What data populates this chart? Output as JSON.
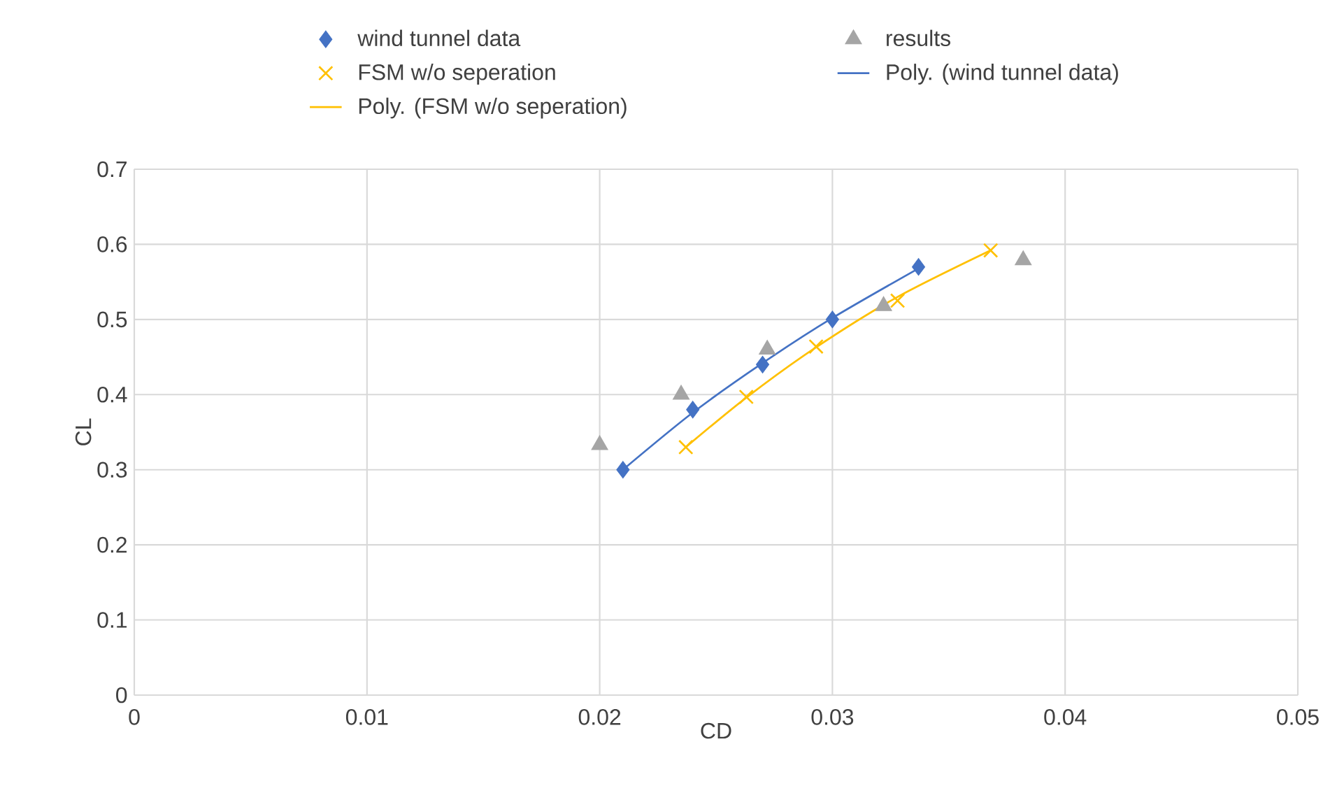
{
  "chart_data": {
    "type": "scatter",
    "xlabel": "CD",
    "ylabel": "CL",
    "xlim": [
      0,
      0.05
    ],
    "ylim": [
      0,
      0.7
    ],
    "xticks": [
      0,
      0.01,
      0.02,
      0.03,
      0.04,
      0.05
    ],
    "yticks": [
      0,
      0.1,
      0.2,
      0.3,
      0.4,
      0.5,
      0.6,
      0.7
    ],
    "grid": true,
    "legend": "top",
    "series": [
      {
        "name": "wind tunnel data",
        "marker": "diamond",
        "color": "#4472c4",
        "x": [
          0.021,
          0.024,
          0.027,
          0.03,
          0.0337
        ],
        "values": [
          0.3,
          0.38,
          0.44,
          0.5,
          0.57
        ]
      },
      {
        "name": "results",
        "marker": "triangle",
        "color": "#a5a5a5",
        "x": [
          0.02,
          0.0235,
          0.0272,
          0.0322,
          0.0382
        ],
        "values": [
          0.333,
          0.4,
          0.46,
          0.518,
          0.579
        ]
      },
      {
        "name": "FSM w/o seperation",
        "marker": "cross",
        "color": "#ffc000",
        "x": [
          0.0237,
          0.0263,
          0.0293,
          0.0328,
          0.0368
        ],
        "values": [
          0.33,
          0.397,
          0.464,
          0.525,
          0.592
        ]
      },
      {
        "name": "Poly. (wind tunnel data)",
        "type": "line",
        "marker": "none",
        "color": "#4472c4",
        "x": [
          0.021,
          0.024,
          0.027,
          0.03,
          0.0337
        ],
        "values": [
          0.3,
          0.376,
          0.442,
          0.502,
          0.568
        ]
      },
      {
        "name": "Poly. (FSM w/o seperation)",
        "type": "line",
        "marker": "none",
        "color": "#ffc000",
        "x": [
          0.0237,
          0.0263,
          0.0293,
          0.0328,
          0.0368
        ],
        "values": [
          0.33,
          0.396,
          0.463,
          0.53,
          0.592
        ]
      }
    ]
  }
}
